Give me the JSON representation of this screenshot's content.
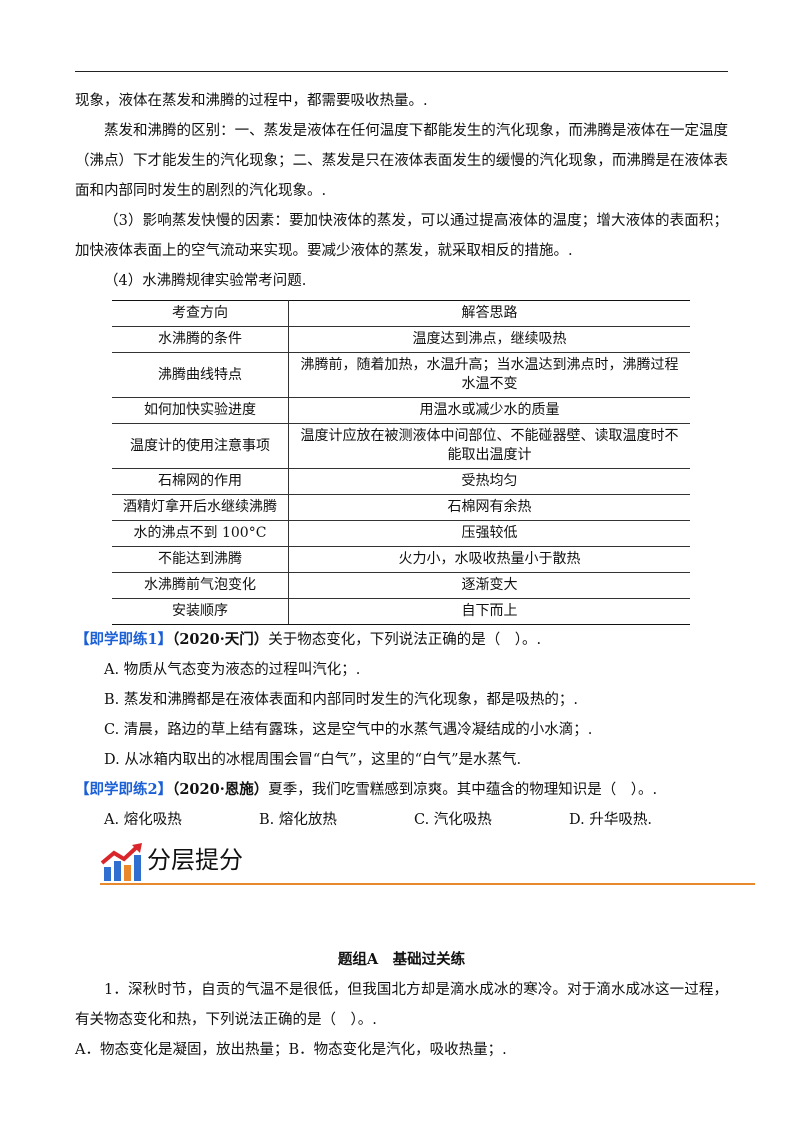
{
  "paragraphs": [
    "现象，液体在蒸发和沸腾的过程中，都需要吸收热量。.",
    "蒸发和沸腾的区别：一、蒸发是液体在任何温度下都能发生的汽化现象，而沸腾是液体在一定温度（沸点）下才能发生的汽化现象；二、蒸发是只在液体表面发生的缓慢的汽化现象，而沸腾是在液体表面和内部同时发生的剧烈的汽化现象。.",
    "（3）影响蒸发快慢的因素：要加快液体的蒸发，可以通过提高液体的温度；增大液体的表面积；加快液体表面上的空气流动来实现。要减少液体的蒸发，就采取相反的措施。.",
    "（4）水沸腾规律实验常考问题."
  ],
  "table": {
    "header": [
      "考查方向",
      "解答思路"
    ],
    "rows": [
      [
        "水沸腾的条件",
        "温度达到沸点，继续吸热"
      ],
      [
        "沸腾曲线特点",
        "沸腾前，随着加热，水温升高；当水温达到沸点时，沸腾过程水温不变"
      ],
      [
        "如何加快实验进度",
        "用温水或减少水的质量"
      ],
      [
        "温度计的使用注意事项",
        "温度计应放在被测液体中间部位、不能碰器壁、读取温度时不能取出温度计"
      ],
      [
        "石棉网的作用",
        "受热均匀"
      ],
      [
        "酒精灯拿开后水继续沸腾",
        "石棉网有余热"
      ],
      [
        "水的沸点不到 100°C",
        "压强较低"
      ],
      [
        "不能达到沸腾",
        "火力小，水吸收热量小于散热"
      ],
      [
        "水沸腾前气泡变化",
        "逐渐变大"
      ],
      [
        "安装顺序",
        "自下而上"
      ]
    ]
  },
  "exercises": [
    {
      "label": "【即学即练1】",
      "source": "（2020·天门）",
      "stem": "关于物态变化，下列说法正确的是（　）。.",
      "options": [
        "A. 物质从气态变为液态的过程叫汽化；.",
        "B. 蒸发和沸腾都是在液体表面和内部同时发生的汽化现象，都是吸热的；.",
        "C. 清晨，路边的草上结有露珠，这是空气中的水蒸气遇冷凝结成的小水滴；.",
        "D. 从冰箱内取出的冰棍周围会冒“白气”，这里的“白气”是水蒸气."
      ]
    },
    {
      "label": "【即学即练2】",
      "source": "（2020·恩施）",
      "stem": "夏季，我们吃雪糕感到凉爽。其中蕴含的物理知识是（　）。.",
      "options": [
        "A. 熔化吸热",
        "B. 熔化放热",
        "C. 汽化吸热",
        "D. 升华吸热."
      ]
    }
  ],
  "section": {
    "banner": "分层提分",
    "group_title": "题组A　基础过关练"
  },
  "questions": [
    {
      "stem": "1．深秋时节，自贡的气温不是很低，但我国北方却是滴水成冰的寒冷。对于滴水成冰这一过程，有关物态变化和热，下列说法正确的是（　）。.",
      "options": "A．物态变化是凝固，放出热量；B．物态变化是汽化，吸收热量；."
    }
  ]
}
